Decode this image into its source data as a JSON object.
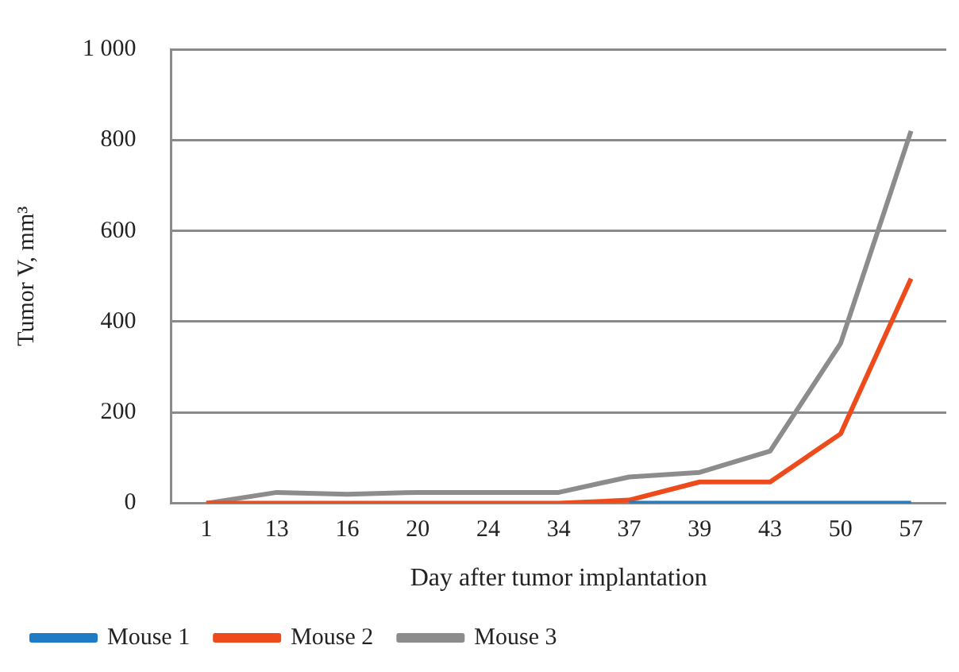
{
  "chart_data": {
    "type": "line",
    "xlabel": "Day after tumor implantation",
    "ylabel": "Tumor V, mm³",
    "categories": [
      "1",
      "13",
      "16",
      "20",
      "24",
      "34",
      "37",
      "39",
      "43",
      "50",
      "57"
    ],
    "series": [
      {
        "name": "Mouse 1",
        "color": "#1f7bc4",
        "values": [
          null,
          null,
          null,
          null,
          null,
          null,
          0,
          0,
          0,
          0,
          0
        ]
      },
      {
        "name": "Mouse 2",
        "color": "#ee4b1c",
        "values": [
          0,
          0,
          0,
          0,
          0,
          0,
          7,
          47,
          47,
          153,
          495
        ]
      },
      {
        "name": "Mouse 3",
        "color": "#8c8c8c",
        "values": [
          0,
          24,
          20,
          24,
          24,
          24,
          58,
          68,
          115,
          352,
          820
        ]
      }
    ],
    "ylim": [
      0,
      1000
    ],
    "yticks": [
      0,
      200,
      400,
      600,
      {
        "value": 800,
        "label": "800"
      },
      {
        "value": 1000,
        "label": "1 000"
      }
    ],
    "grid": "y",
    "legend": "bottom left",
    "marker": "none",
    "line_style": "solid"
  }
}
